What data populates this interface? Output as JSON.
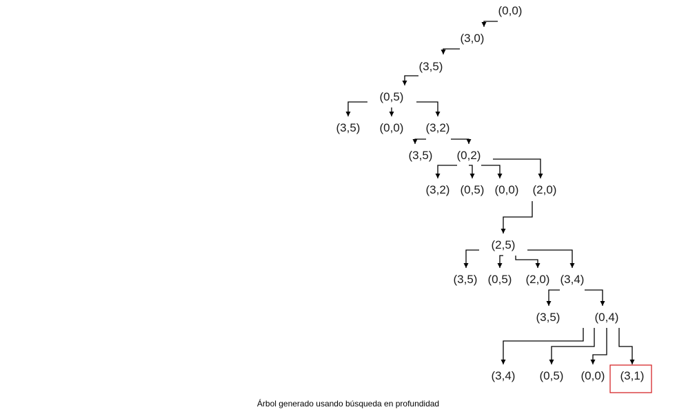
{
  "caption": "Árbol generado usando búsqueda en profundidad",
  "target_node_id": "n28",
  "nodes": [
    {
      "id": "n1",
      "label": "(0,0)"
    },
    {
      "id": "n2",
      "label": "(3,0)"
    },
    {
      "id": "n3",
      "label": "(3,5)"
    },
    {
      "id": "n4",
      "label": "(0,5)"
    },
    {
      "id": "n5",
      "label": "(3,5)"
    },
    {
      "id": "n6",
      "label": "(0,0)"
    },
    {
      "id": "n7",
      "label": "(3,2)"
    },
    {
      "id": "n8",
      "label": "(3,5)"
    },
    {
      "id": "n9",
      "label": "(0,2)"
    },
    {
      "id": "n10",
      "label": "(3,2)"
    },
    {
      "id": "n11",
      "label": "(0,5)"
    },
    {
      "id": "n12",
      "label": "(0,0)"
    },
    {
      "id": "n13",
      "label": "(2,0)"
    },
    {
      "id": "n14",
      "label": "(2,5)"
    },
    {
      "id": "n15",
      "label": "(3,5)"
    },
    {
      "id": "n16",
      "label": "(0,5)"
    },
    {
      "id": "n17",
      "label": "(2,0)"
    },
    {
      "id": "n18",
      "label": "(3,4)"
    },
    {
      "id": "n19",
      "label": "(3,5)"
    },
    {
      "id": "n20",
      "label": "(0,4)"
    },
    {
      "id": "n25",
      "label": "(3,4)"
    },
    {
      "id": "n26",
      "label": "(0,5)"
    },
    {
      "id": "n27",
      "label": "(0,0)"
    },
    {
      "id": "n28",
      "label": "(3,1)"
    }
  ],
  "edges": [
    {
      "from": "n1",
      "to": "n2"
    },
    {
      "from": "n2",
      "to": "n3"
    },
    {
      "from": "n3",
      "to": "n4"
    },
    {
      "from": "n4",
      "to": "n5"
    },
    {
      "from": "n4",
      "to": "n6"
    },
    {
      "from": "n4",
      "to": "n7"
    },
    {
      "from": "n7",
      "to": "n8"
    },
    {
      "from": "n7",
      "to": "n9"
    },
    {
      "from": "n9",
      "to": "n10"
    },
    {
      "from": "n9",
      "to": "n11"
    },
    {
      "from": "n9",
      "to": "n12"
    },
    {
      "from": "n9",
      "to": "n13"
    },
    {
      "from": "n13",
      "to": "n14"
    },
    {
      "from": "n14",
      "to": "n15"
    },
    {
      "from": "n14",
      "to": "n16"
    },
    {
      "from": "n14",
      "to": "n17"
    },
    {
      "from": "n14",
      "to": "n18"
    },
    {
      "from": "n18",
      "to": "n19"
    },
    {
      "from": "n18",
      "to": "n20"
    },
    {
      "from": "n20",
      "to": "n25"
    },
    {
      "from": "n20",
      "to": "n26"
    },
    {
      "from": "n20",
      "to": "n27"
    },
    {
      "from": "n20",
      "to": "n28"
    }
  ]
}
